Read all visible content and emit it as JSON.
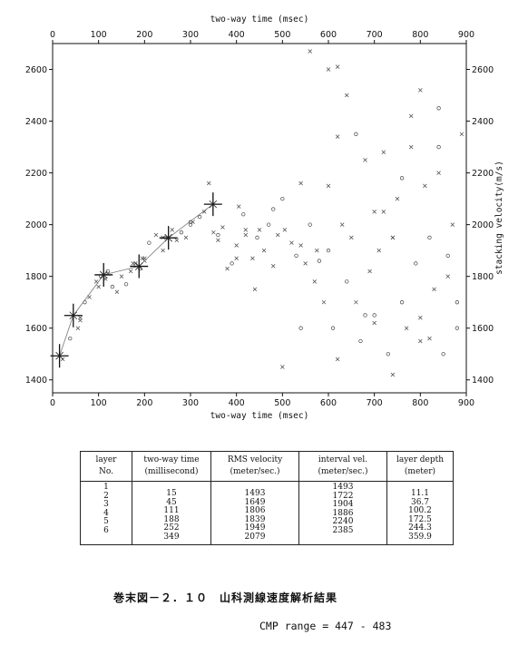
{
  "chart_data": {
    "type": "scatter",
    "title": "",
    "xlabel": "two-way time (msec)",
    "ylabel": "stacking velocity(m/s)",
    "xlim": [
      0,
      900
    ],
    "ylim": [
      1350,
      2700
    ],
    "xticks": [
      "0",
      "100",
      "200",
      "300",
      "400",
      "500",
      "600",
      "700",
      "800",
      "900"
    ],
    "yticks": [
      "1400",
      "1600",
      "1800",
      "2000",
      "2200",
      "2400",
      "2600"
    ],
    "picked_series": {
      "name": "",
      "x": [
        15,
        45,
        111,
        188,
        252,
        349
      ],
      "y": [
        1493,
        1649,
        1806,
        1839,
        1949,
        2079
      ]
    },
    "scatter_series": {
      "name": "",
      "x": [
        22,
        38,
        55,
        60,
        70,
        80,
        95,
        105,
        115,
        120,
        130,
        140,
        150,
        160,
        170,
        175,
        190,
        195,
        200,
        210,
        225,
        240,
        245,
        260,
        270,
        280,
        290,
        305,
        320,
        330,
        350,
        360,
        370,
        380,
        390,
        400,
        405,
        415,
        420,
        435,
        445,
        450,
        460,
        470,
        480,
        490,
        500,
        505,
        520,
        530,
        540,
        550,
        560,
        570,
        575,
        580,
        590,
        600,
        610,
        620,
        630,
        640,
        650,
        660,
        670,
        680,
        690,
        700,
        710,
        720,
        730,
        740,
        750,
        760,
        770,
        780,
        790,
        800,
        810,
        820,
        830,
        840,
        850,
        860,
        870,
        880,
        890,
        60,
        120,
        180,
        240,
        300,
        360,
        420,
        480,
        540,
        600,
        660,
        720,
        780,
        840,
        100,
        200,
        300,
        400,
        500,
        600,
        700,
        800,
        880,
        340,
        440,
        540,
        640,
        740,
        840,
        560,
        620,
        680,
        740,
        800,
        860,
        620,
        700,
        760,
        820
      ],
      "y": [
        1480,
        1560,
        1600,
        1630,
        1700,
        1720,
        1780,
        1800,
        1790,
        1810,
        1760,
        1740,
        1800,
        1770,
        1820,
        1850,
        1830,
        1870,
        1860,
        1930,
        1960,
        1900,
        1950,
        1980,
        1940,
        1970,
        1950,
        2010,
        2030,
        2050,
        1970,
        1960,
        1990,
        1830,
        1850,
        1920,
        2070,
        2040,
        1960,
        1870,
        1950,
        1980,
        1900,
        2000,
        1840,
        1960,
        2100,
        1980,
        1930,
        1880,
        1920,
        1850,
        2000,
        1780,
        1900,
        1860,
        1700,
        2150,
        1600,
        1480,
        2000,
        1780,
        1950,
        1700,
        1550,
        2250,
        1820,
        1650,
        1900,
        2050,
        1500,
        1950,
        2100,
        1700,
        1600,
        2300,
        1850,
        1640,
        2150,
        1950,
        1750,
        2200,
        1500,
        1800,
        2000,
        1600,
        2350,
        1640,
        1820,
        1850,
        1950,
        2000,
        1940,
        1980,
        2060,
        2160,
        2600,
        2350,
        2280,
        2420,
        2450,
        1760,
        1870,
        2010,
        1870,
        1450,
        1900,
        1620,
        2520,
        1700,
        2160,
        1750,
        1600,
        2500,
        1950,
        2300,
        2670,
        2340,
        1650,
        1420,
        1550,
        1880,
        2610,
        2050,
        2180,
        1560
      ]
    },
    "legend": "none",
    "grid": false
  },
  "table": {
    "headers": [
      {
        "line1": "layer",
        "line2": "No."
      },
      {
        "line1": "two-way time",
        "line2": "(millisecond)"
      },
      {
        "line1": "RMS velocity",
        "line2": "(meter/sec.)"
      },
      {
        "line1": "interval vel.",
        "line2": "(meter/sec.)"
      },
      {
        "line1": "layer depth",
        "line2": "(meter)"
      }
    ],
    "layer_no": [
      "1",
      "2",
      "3",
      "4",
      "5",
      "6"
    ],
    "two_way_time": [
      "15",
      "45",
      "111",
      "188",
      "252",
      "349"
    ],
    "rms_velocity": [
      "1493",
      "1649",
      "1806",
      "1839",
      "1949",
      "2079"
    ],
    "interval_vel": [
      "1493",
      "1722",
      "1904",
      "1886",
      "2240",
      "2385"
    ],
    "layer_depth": [
      "11.1",
      "36.7",
      "100.2",
      "172.5",
      "244.3",
      "359.9"
    ]
  },
  "caption": "巻末図－２．１０　山科測線速度解析結果",
  "cmp_range": "CMP range = 447 - 483"
}
